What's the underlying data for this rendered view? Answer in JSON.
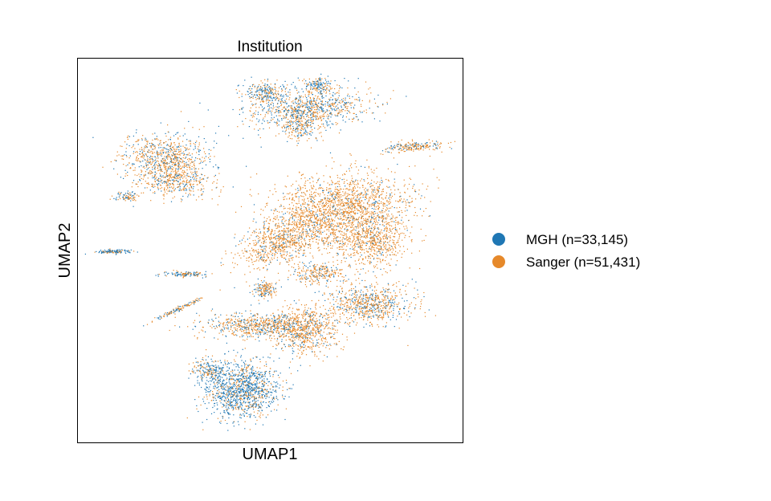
{
  "chart_data": {
    "type": "scatter",
    "title": "Institution",
    "xlabel": "UMAP1",
    "ylabel": "UMAP2",
    "grid": false,
    "ticks": false,
    "legend_position": "right",
    "legend_marker": "circle",
    "series": [
      {
        "name": "MGH (n=33,145)",
        "color": "#1f77b4",
        "count": 33145
      },
      {
        "name": "Sanger (n=51,431)",
        "color": "#e6892a",
        "count": 51431
      }
    ]
  },
  "colors": {
    "mgh": "#1f77b4",
    "sanger": "#e6892a",
    "frame": "#000000"
  }
}
